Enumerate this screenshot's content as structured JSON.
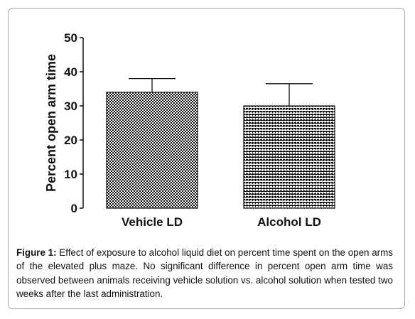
{
  "chart_data": {
    "type": "bar",
    "title": "",
    "xlabel": "",
    "ylabel": "Percent open arm time",
    "ylim": [
      0,
      50
    ],
    "yticks": [
      0,
      10,
      20,
      30,
      40,
      50
    ],
    "categories": [
      "Vehicle LD",
      "Alcohol LD"
    ],
    "values": [
      34,
      30
    ],
    "error_upper": [
      38,
      36.5
    ],
    "bar_patterns": [
      "checkerboard",
      "horizontal-stripes"
    ],
    "grid": false,
    "legend": "none"
  },
  "caption": {
    "label": "Figure 1:",
    "text": " Effect of exposure to alcohol liquid diet on percent time spent on the open arms of the elevated plus maze. No significant difference in percent open arm time was observed between animals receiving vehicle solution vs. alcohol solution when tested two weeks after the last administration."
  },
  "colors": {
    "ink": "#111111",
    "frame": "#a8a8a8",
    "background": "#ffffff"
  }
}
